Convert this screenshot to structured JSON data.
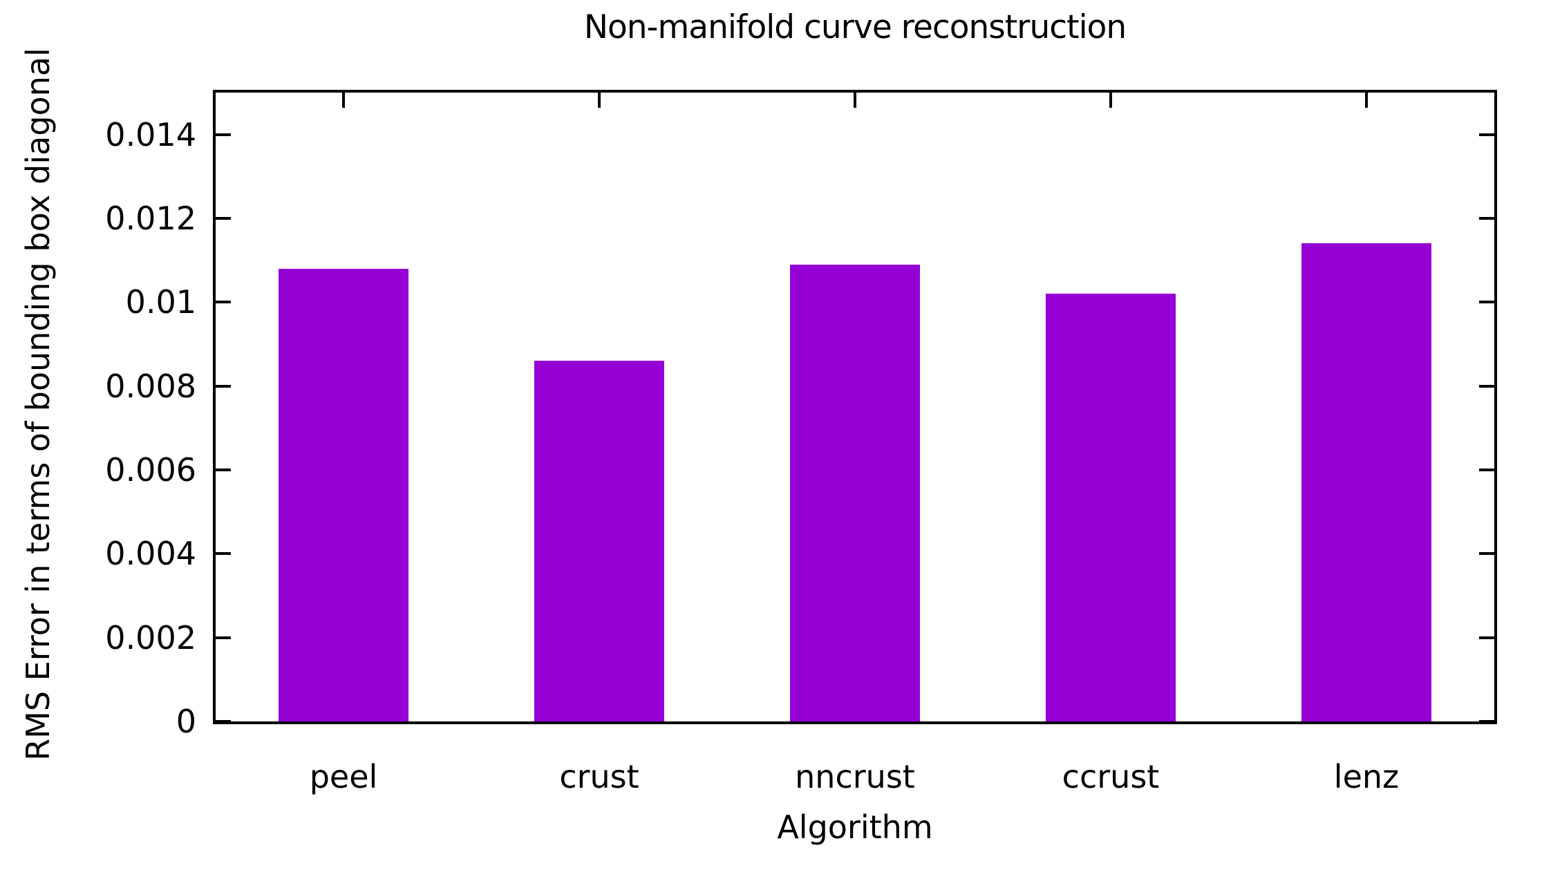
{
  "chart_data": {
    "type": "bar",
    "title": "Non-manifold curve reconstruction",
    "xlabel": "Algorithm",
    "ylabel": "RMS Error in terms of bounding box diagonal",
    "categories": [
      "peel",
      "crust",
      "nncrust",
      "ccrust",
      "lenz"
    ],
    "values": [
      0.0108,
      0.0086,
      0.0109,
      0.0102,
      0.0114
    ],
    "ylim": [
      0,
      0.015
    ],
    "yticks": {
      "values": [
        0,
        0.002,
        0.004,
        0.006,
        0.008,
        0.01,
        0.012,
        0.014
      ],
      "labels": [
        "0",
        "0.002",
        "0.004",
        "0.006",
        "0.008",
        "0.01",
        "0.012",
        "0.014"
      ]
    },
    "bar_width_fraction": 0.51,
    "grid": false,
    "legend": "none",
    "tick_style": "inward-mirrored",
    "colors": {
      "bar_fill": "#9400d3",
      "axis": "#000000",
      "text": "#000000",
      "background": "#ffffff"
    }
  }
}
